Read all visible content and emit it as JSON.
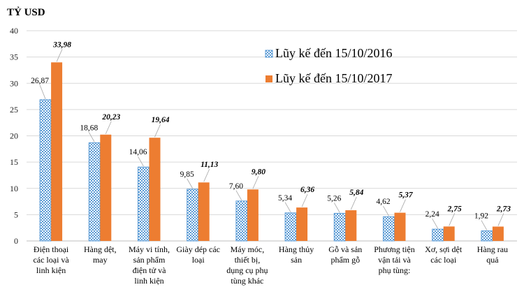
{
  "chart_data": {
    "type": "bar",
    "title": "",
    "ylabel": "TỶ USD",
    "xlabel": "",
    "ylim": [
      0,
      40
    ],
    "yticks": [
      0,
      5,
      10,
      15,
      20,
      25,
      30,
      35,
      40
    ],
    "grid": true,
    "legend_position": "top-right",
    "categories": [
      [
        "Điện thoại",
        "các loại và",
        "linh  kiện"
      ],
      [
        "Hàng dệt,",
        "may"
      ],
      [
        "Máy vi tính,",
        "sản phẩm",
        "điện tử và",
        "linh kiện"
      ],
      [
        "Giày dép các",
        "loại"
      ],
      [
        "Máy móc,",
        "thiết bị,",
        "dụng cụ phụ",
        "tùng khác"
      ],
      [
        "Hàng thủy",
        "sản"
      ],
      [
        "Gỗ và sản",
        "phẩm gỗ"
      ],
      [
        "Phương tiện",
        "vận tải và",
        "phụ tùng:"
      ],
      [
        "Xơ, sợi dệt",
        "các loại"
      ],
      [
        "Hàng rau",
        "quả"
      ]
    ],
    "series": [
      {
        "name": "Lũy kế đến 15/10/2016",
        "color": "#5b9bd5",
        "pattern": "checkered",
        "values": [
          26.87,
          18.68,
          14.06,
          9.85,
          7.6,
          5.34,
          5.26,
          4.62,
          2.24,
          1.92
        ],
        "labels": [
          "26,87",
          "18,68",
          "14,06",
          "9,85",
          "7,60",
          "5,34",
          "5,26",
          "4,62",
          "2,24",
          "1,92"
        ]
      },
      {
        "name": "Lũy kế đến 15/10/2017",
        "color": "#ed7d31",
        "pattern": "solid",
        "values": [
          33.98,
          20.23,
          19.64,
          11.13,
          9.8,
          6.36,
          5.84,
          5.37,
          2.75,
          2.73
        ],
        "labels": [
          "33,98",
          "20,23",
          "19,64",
          "11,13",
          "9,80",
          "6,36",
          "5,84",
          "5,37",
          "2,75",
          "2,73"
        ]
      }
    ]
  }
}
